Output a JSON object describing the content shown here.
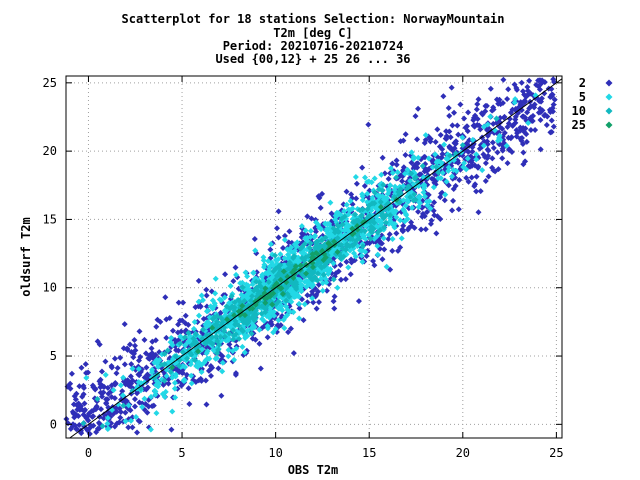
{
  "chart_data": {
    "type": "scatter",
    "title_lines": [
      "Scatterplot for   18 stations Selection: NorwayMountain",
      "T2m [deg C]",
      "Period: 20210716-20210724",
      "Used {00,12} + 25 26 ... 36"
    ],
    "xlabel": "OBS T2m",
    "ylabel": "oldsurf T2m",
    "xlim": [
      -1.2,
      25.3
    ],
    "ylim": [
      -1,
      25.5
    ],
    "xticks": [
      0,
      5,
      10,
      15,
      20,
      25
    ],
    "yticks": [
      0,
      5,
      10,
      15,
      20,
      25
    ],
    "grid": true,
    "legend_position": "right-outside-top",
    "reference_line": "y = x",
    "series": [
      {
        "name": "2",
        "color": "#2f2fb8",
        "marker": "diamond"
      },
      {
        "name": "5",
        "color": "#22d8e6",
        "marker": "diamond"
      },
      {
        "name": "10",
        "color": "#12b8c0",
        "marker": "diamond"
      },
      {
        "name": "25",
        "color": "#12a06a",
        "marker": "diamond"
      }
    ],
    "point_density_model": {
      "note": "point cloud around y=x",
      "x_range": [
        -1.2,
        25
      ],
      "spread_std": [
        1.8,
        1.25,
        0.8,
        0.35
      ]
    }
  }
}
